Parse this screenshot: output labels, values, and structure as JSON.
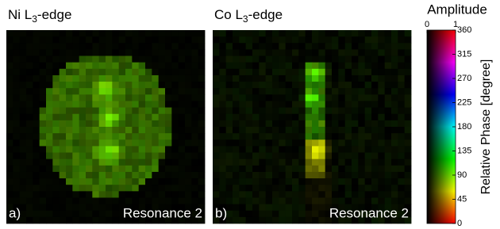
{
  "panels": [
    {
      "title": [
        "Ni L",
        "3",
        "-edge"
      ],
      "label": "a)",
      "caption": "Resonance 2"
    },
    {
      "title": [
        "Co L",
        "3",
        "-edge"
      ],
      "label": "b)",
      "caption": "Resonance 2"
    }
  ],
  "colorbar": {
    "title": "Amplitude",
    "amplitude_lim": [
      0,
      1
    ],
    "amplitude_ticks": [
      0,
      1
    ],
    "phase_lim": [
      0,
      360
    ],
    "phase_ticks": [
      0,
      45,
      90,
      135,
      180,
      225,
      270,
      315,
      360
    ],
    "phase_label": "Relative Phase [degree]"
  }
}
